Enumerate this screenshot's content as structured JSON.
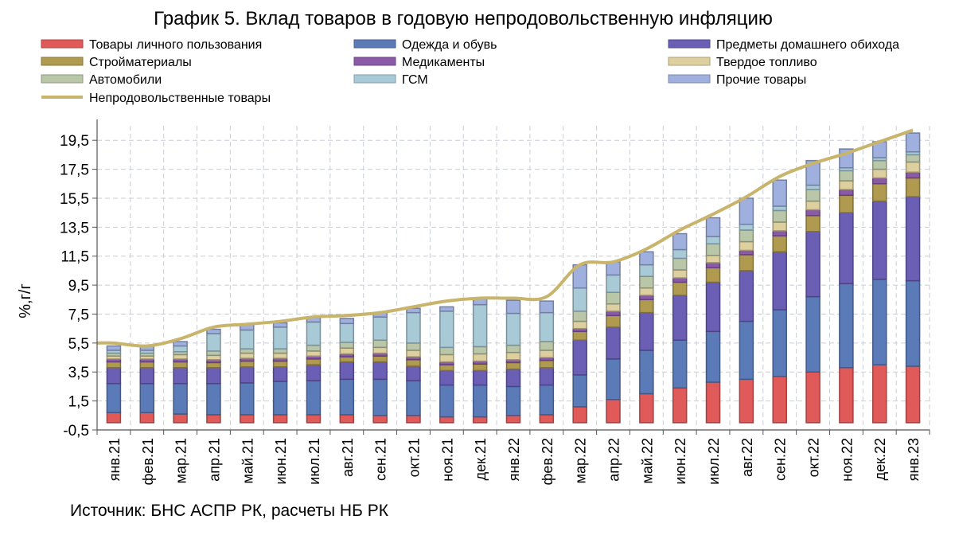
{
  "chart_data": {
    "type": "bar",
    "title": "График 5. Вклад товаров в годовую непродовольственную инфляцию",
    "ylabel": "%,г/г",
    "xlabel": "",
    "ylim": [
      -0.5,
      20.5
    ],
    "yticks": [
      "-0,5",
      "1,5",
      "3,5",
      "5,5",
      "7,5",
      "9,5",
      "11,5",
      "13,5",
      "15,5",
      "17,5",
      "19,5"
    ],
    "ytick_values": [
      -0.5,
      1.5,
      3.5,
      5.5,
      7.5,
      9.5,
      11.5,
      13.5,
      15.5,
      17.5,
      19.5
    ],
    "grid": true,
    "legend_position": "top",
    "categories": [
      "янв.21",
      "фев.21",
      "мар.21",
      "апр.21",
      "май.21",
      "июн.21",
      "июл.21",
      "авг.21",
      "сен.21",
      "окт.21",
      "ноя.21",
      "дек.21",
      "янв.22",
      "фев.22",
      "мар.22",
      "апр.22",
      "май.22",
      "июн.22",
      "июл.22",
      "авг.22",
      "сен.22",
      "окт.22",
      "ноя.22",
      "дек.22",
      "янв.23"
    ],
    "series": [
      {
        "name": "Товары личного пользования",
        "color": "#e05a5a",
        "values": [
          0.7,
          0.7,
          0.6,
          0.55,
          0.55,
          0.55,
          0.55,
          0.55,
          0.5,
          0.5,
          0.4,
          0.4,
          0.5,
          0.55,
          1.1,
          1.6,
          2.0,
          2.4,
          2.8,
          3.0,
          3.2,
          3.5,
          3.8,
          4.0,
          3.9
        ]
      },
      {
        "name": "Одежда и обувь",
        "color": "#5a7bb8",
        "values": [
          2.0,
          2.0,
          2.1,
          2.15,
          2.2,
          2.3,
          2.35,
          2.45,
          2.5,
          2.4,
          2.2,
          2.2,
          2.0,
          2.05,
          2.2,
          2.8,
          3.0,
          3.3,
          3.5,
          4.0,
          4.6,
          5.2,
          5.8,
          5.9,
          5.9
        ]
      },
      {
        "name": "Предметы домашнего обихода",
        "color": "#6a5fb5",
        "values": [
          1.1,
          1.1,
          1.1,
          1.1,
          1.1,
          1.0,
          1.1,
          1.2,
          1.2,
          1.0,
          1.0,
          1.0,
          1.2,
          1.2,
          2.4,
          2.2,
          2.6,
          3.1,
          3.4,
          3.5,
          4.0,
          4.5,
          4.9,
          5.4,
          5.8
        ]
      },
      {
        "name": "Стройматериалы",
        "color": "#b09a50",
        "values": [
          0.4,
          0.4,
          0.4,
          0.35,
          0.4,
          0.4,
          0.4,
          0.35,
          0.4,
          0.45,
          0.4,
          0.45,
          0.45,
          0.5,
          0.6,
          0.8,
          0.9,
          0.9,
          1.0,
          1.1,
          1.1,
          1.1,
          1.2,
          1.2,
          1.3
        ]
      },
      {
        "name": "Медикаменты",
        "color": "#8a5aa8",
        "values": [
          0.2,
          0.2,
          0.2,
          0.2,
          0.2,
          0.2,
          0.2,
          0.2,
          0.2,
          0.2,
          0.2,
          0.2,
          0.2,
          0.2,
          0.2,
          0.3,
          0.3,
          0.3,
          0.35,
          0.3,
          0.35,
          0.4,
          0.4,
          0.4,
          0.4
        ]
      },
      {
        "name": "Твердое топливо",
        "color": "#ddcf9e",
        "values": [
          0.2,
          0.2,
          0.3,
          0.3,
          0.35,
          0.35,
          0.35,
          0.4,
          0.4,
          0.45,
          0.5,
          0.5,
          0.5,
          0.5,
          0.5,
          0.5,
          0.5,
          0.55,
          0.5,
          0.6,
          0.6,
          0.6,
          0.6,
          0.6,
          0.7
        ]
      },
      {
        "name": "Автомобили",
        "color": "#b9c6a8",
        "values": [
          0.2,
          0.2,
          0.2,
          0.3,
          0.3,
          0.3,
          0.4,
          0.4,
          0.5,
          0.5,
          0.5,
          0.5,
          0.5,
          0.6,
          0.7,
          0.8,
          0.8,
          0.8,
          0.8,
          0.8,
          0.8,
          0.8,
          0.7,
          0.6,
          0.5
        ]
      },
      {
        "name": "ГСМ",
        "color": "#a8c9d6",
        "values": [
          0.2,
          0.2,
          0.4,
          1.2,
          1.3,
          1.5,
          1.6,
          1.3,
          1.6,
          2.1,
          2.5,
          2.9,
          2.2,
          2.0,
          1.6,
          1.2,
          0.8,
          0.6,
          0.5,
          0.4,
          0.3,
          0.3,
          0.2,
          0.2,
          0.2
        ]
      },
      {
        "name": "Прочие товары",
        "color": "#9fb0df",
        "values": [
          0.3,
          0.3,
          0.3,
          0.3,
          0.4,
          0.3,
          0.3,
          0.35,
          0.3,
          0.3,
          0.3,
          0.4,
          0.9,
          0.8,
          1.6,
          0.9,
          0.9,
          1.1,
          1.3,
          1.8,
          1.8,
          1.7,
          1.3,
          1.1,
          1.3
        ]
      }
    ],
    "line": {
      "name": "Непродовольственные товары",
      "color": "#c8b46a",
      "values": [
        5.5,
        5.3,
        5.8,
        6.6,
        6.8,
        7.0,
        7.3,
        7.4,
        7.6,
        8.0,
        8.4,
        8.6,
        8.6,
        8.7,
        10.9,
        11.1,
        12.0,
        13.3,
        14.4,
        15.6,
        17.0,
        17.9,
        18.6,
        19.4,
        20.2
      ]
    },
    "source": "Источник: БНС АСПР РК, расчеты НБ РК"
  }
}
